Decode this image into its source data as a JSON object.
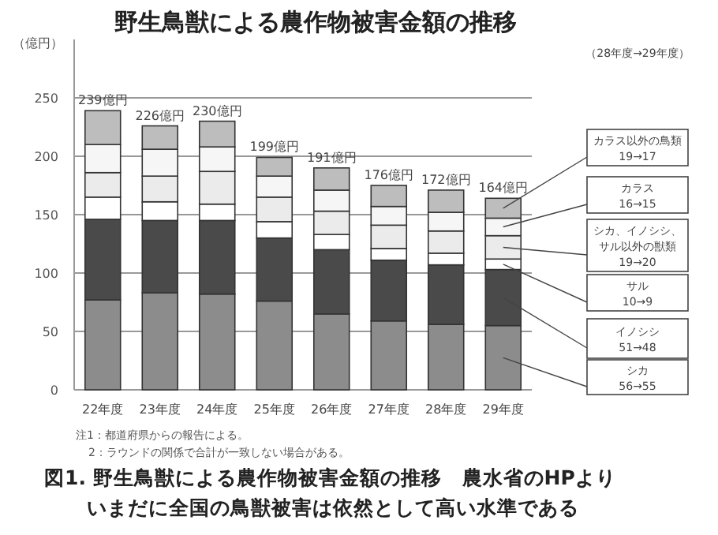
{
  "chart_data": {
    "type": "bar",
    "stacked": true,
    "title": "野生鳥獣による農作物被害金額の推移",
    "ylabel": "（億円）",
    "categories": [
      "22年度",
      "23年度",
      "24年度",
      "25年度",
      "26年度",
      "27年度",
      "28年度",
      "29年度"
    ],
    "series": [
      {
        "name": "シカ",
        "color": "#8c8c8c",
        "values": [
          77,
          83,
          82,
          76,
          65,
          59,
          56,
          55
        ]
      },
      {
        "name": "イノシシ",
        "color": "#4a4a4a",
        "values": [
          69,
          62,
          63,
          54,
          55,
          52,
          51,
          48
        ]
      },
      {
        "name": "サル",
        "color": "#ffffff",
        "values": [
          19,
          16,
          14,
          14,
          13,
          10,
          10,
          9
        ]
      },
      {
        "name": "シカ、イノシシ、サル以外の獣類",
        "color": "#ebebeb",
        "values": [
          21,
          22,
          28,
          21,
          20,
          20,
          19,
          20
        ]
      },
      {
        "name": "カラス",
        "color": "#f6f6f6",
        "values": [
          24,
          23,
          21,
          18,
          18,
          16,
          16,
          15
        ]
      },
      {
        "name": "カラス以外の鳥類",
        "color": "#bdbdbd",
        "values": [
          29,
          20,
          22,
          16,
          19,
          18,
          19,
          17
        ]
      }
    ],
    "totals": [
      "239億円",
      "226億円",
      "230億円",
      "199億円",
      "191億円",
      "176億円",
      "172億円",
      "164億円"
    ],
    "ylim": [
      0,
      300
    ],
    "yticks": [
      0,
      50,
      100,
      150,
      200,
      250
    ],
    "grid": "y",
    "legend": "right",
    "annotations": [
      "（28年度→29年度）",
      "19→17",
      "16→15",
      "19→20",
      "10→9",
      "51→48",
      "56→55",
      "注1：都道府県からの報告による。",
      "2：ラウンドの関係で合計が一致しない場合がある。",
      "図1.  野生鳥獣による農作物被害金額の推移　農水省のHPより",
      "いまだに全国の鳥獣被害は依然として高い水準である"
    ]
  }
}
